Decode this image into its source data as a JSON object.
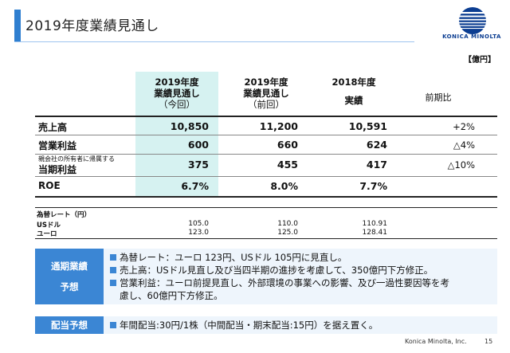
{
  "header": {
    "title": "2019年度業績見通し",
    "logo_text": "KONICA MINOLTA"
  },
  "table": {
    "unit": "【億円】",
    "columns": [
      {
        "line1": "2019年度",
        "line2": "業績見通し",
        "line3": "（今回）"
      },
      {
        "line1": "2019年度",
        "line2": "業績見通し",
        "line3": "（前回）"
      },
      {
        "line1": "2018年度",
        "line2": "実績",
        "line3": ""
      },
      {
        "line1": "前期比",
        "line2": "",
        "line3": ""
      }
    ],
    "rows": [
      {
        "label": "売上高",
        "sublabel": "",
        "values": [
          "10,850",
          "11,200",
          "10,591"
        ],
        "change": "+2%"
      },
      {
        "label": "営業利益",
        "sublabel": "",
        "values": [
          "600",
          "660",
          "624"
        ],
        "change": "△4%"
      },
      {
        "label": "当期利益",
        "sublabel": "親会社の所有者に帰属する",
        "values": [
          "375",
          "455",
          "417"
        ],
        "change": "△10%"
      },
      {
        "label": "ROE",
        "sublabel": "",
        "values": [
          "6.7%",
          "8.0%",
          "7.7%"
        ],
        "change": ""
      }
    ],
    "rates": {
      "title": "為替レート（円）",
      "items": [
        {
          "label": "USドル",
          "values": [
            "105.0",
            "110.0",
            "110.91"
          ]
        },
        {
          "label": "ユーロ",
          "values": [
            "123.0",
            "125.0",
            "128.41"
          ]
        }
      ]
    }
  },
  "outlook": {
    "label_line1": "通期業績",
    "label_line2": "予想",
    "bullets": [
      "為替レート：ユーロ 123円、USドル 105円に見直し。",
      "売上高：USドル見直し及び当四半期の進捗を考慮して、350億円下方修正。",
      "営業利益：ユーロ前提見直し、外部環境の事業への影響、及び一過性要因等を考",
      "慮し、60億円下方修正。"
    ]
  },
  "dividend": {
    "label": "配当予想",
    "text": "年間配当:30円/1株（中間配当・期末配当:15円）を据え置く。"
  },
  "footer": {
    "company": "Konica Minolta, Inc.",
    "page": "15"
  },
  "colors": {
    "accent": "#3b86d4",
    "highlight": "#d6f2f1"
  }
}
